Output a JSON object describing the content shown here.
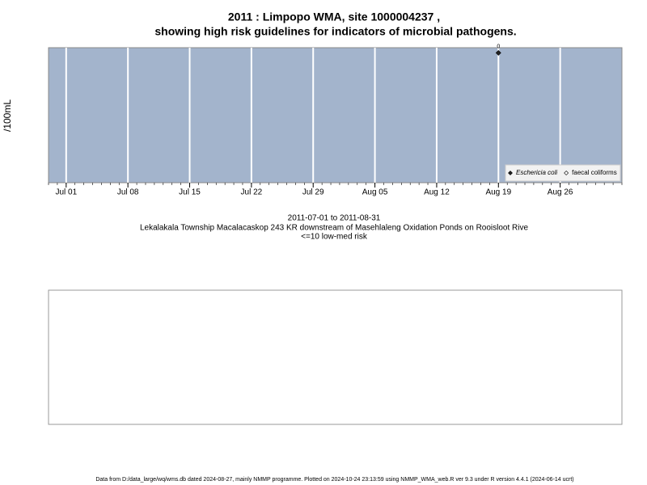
{
  "chart_data": {
    "type": "scatter",
    "title": "2011 : Limpopo WMA, site 1000004237 ,",
    "subtitle": "showing high risk guidelines for indicators of microbial pathogens.",
    "y_label": "/100mL",
    "x_label_lines": [
      "2011-07-01 to 2011-08-31",
      "Lekalakala Township Macalacaskop 243 KR downstream of Masehlaleng Oxidation Ponds on Rooisloot Rive",
      "<=10 low-med risk"
    ],
    "footer": "Data from D:/data_large/wq/wms.db dated 2024-08-27, mainly NMMP programme. Plotted on 2024-10-24 23:13:59 using NMMP_WMA_web.R ver 9.3 under R version 4.4.1 (2024-06-14 ucrt)",
    "x": [
      "2011-08-19"
    ],
    "series": [
      {
        "name": "Eschericia coli",
        "color": "#222222",
        "values": [
          0
        ],
        "value_labels": [
          "0"
        ]
      },
      {
        "name": "faecal coliforms",
        "color": "#ffffff",
        "values": [
          null
        ]
      }
    ],
    "xlim": [
      "2011-06-29",
      "2011-09-02"
    ],
    "xticks": [
      {
        "value": "2011-07-01",
        "label": "Jul 01"
      },
      {
        "value": "2011-07-08",
        "label": "Jul 08"
      },
      {
        "value": "2011-07-15",
        "label": "Jul 15"
      },
      {
        "value": "2011-07-22",
        "label": "Jul 22"
      },
      {
        "value": "2011-07-29",
        "label": "Jul 29"
      },
      {
        "value": "2011-08-05",
        "label": "Aug 05"
      },
      {
        "value": "2011-08-12",
        "label": "Aug 12"
      },
      {
        "value": "2011-08-19",
        "label": "Aug 19"
      },
      {
        "value": "2011-08-26",
        "label": "Aug 26"
      }
    ],
    "ylim": [
      -1,
      0.04
    ],
    "grid": true,
    "panel_color": "#a3b4cc",
    "legend_position": "bottom-right"
  }
}
